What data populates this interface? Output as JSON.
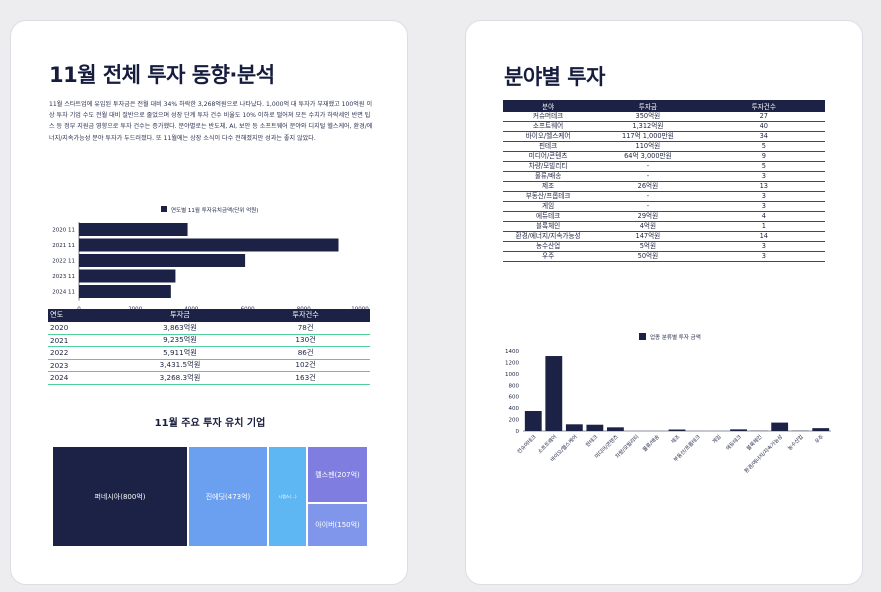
{
  "left": {
    "title": "11월 전체 투자 동향·분석",
    "paragraph": "11월 스타트업에 유입된 투자금은 전월 대비 34% 하락한 3,268억원으로 나타났다. 1,000억 대 투자가 부재했고 100억원 이상 투자 기업 수도 전월 대비 절반으로 줄었으며 성장 단계 투자 건수 비율도 10% 이하로 떨어져 모든 수치가 하락세인 반면 팁스 등 정부 지원금 영향으로 투자 건수는 증가했다. 분야별로는 반도체, AI, 보안 등 소프트웨어 분야와 디지털 헬스케어, 환경/에너지/지속가능성 분야 투자가 두드러졌다. 또 11월에는 상장 소식이 다수 전해졌지만 성과는 좋지 않았다.",
    "chart_data": {
      "type": "bar",
      "orientation": "horizontal",
      "legend": "연도별 11월 투자유치금액(단위 억원)",
      "categories": [
        "2020 11",
        "2021 11",
        "2022 11",
        "2023 11",
        "2024 11"
      ],
      "values": [
        3863,
        9235,
        5911,
        3431.5,
        3268.3
      ],
      "xlim": [
        0,
        10000
      ],
      "xticks": [
        "0",
        "2000",
        "4000",
        "6000",
        "8000",
        "10000"
      ],
      "color": "#1b2245"
    },
    "table": {
      "headers": [
        "연도",
        "투자금",
        "투자건수"
      ],
      "rows": [
        [
          "2020",
          "3,863억원",
          "78건"
        ],
        [
          "2021",
          "9,235억원",
          "130건"
        ],
        [
          "2022",
          "5,911억원",
          "86건"
        ],
        [
          "2023",
          "3,431.5억원",
          "102건"
        ],
        [
          "2024",
          "3,268.3억원",
          "163건"
        ]
      ]
    },
    "treemap_title": "11월 주요 투자 유치 기업",
    "treemap": [
      {
        "label": "퍼네시아(800억)",
        "value": 800,
        "color": "#1b2245"
      },
      {
        "label": "진에딧(473억)",
        "value": 473,
        "color": "#6b9ff0"
      },
      {
        "label": "시랩스(…)",
        "value": 0,
        "color": "#5eb7f2"
      },
      {
        "label": "멜스젠(207억)",
        "value": 207,
        "color": "#7f7de0"
      },
      {
        "label": "아이버(150억)",
        "value": 150,
        "color": "#7f96ea"
      }
    ]
  },
  "right": {
    "title": "분야별 투자",
    "table": {
      "headers": [
        "분야",
        "투자금",
        "투자건수"
      ],
      "rows": [
        [
          "커슈머테크",
          "350억원",
          "27"
        ],
        [
          "소프트웨어",
          "1,312억원",
          "40"
        ],
        [
          "바이오/헬스케어",
          "117억 1,000만원",
          "34"
        ],
        [
          "핀테크",
          "110억원",
          "5"
        ],
        [
          "미디어/콘텐츠",
          "64억 3,000만원",
          "9"
        ],
        [
          "차량/모빌리티",
          "-",
          "5"
        ],
        [
          "물류/배송",
          "-",
          "3"
        ],
        [
          "제조",
          "26억원",
          "13"
        ],
        [
          "부동산/프롭테크",
          "-",
          "3"
        ],
        [
          "게임",
          "-",
          "3"
        ],
        [
          "에듀테크",
          "29억원",
          "4"
        ],
        [
          "블록체인",
          "4억원",
          "1"
        ],
        [
          "환경/에너지/지속가능성",
          "147억원",
          "14"
        ],
        [
          "농수산업",
          "5억원",
          "3"
        ],
        [
          "우주",
          "50억원",
          "3"
        ]
      ]
    },
    "chart_data": {
      "type": "bar",
      "legend": "업종 분류별 투자 금액",
      "categories": [
        "컨슈머테크",
        "소프트웨어",
        "바이오/헬스케어",
        "핀테크",
        "미디어/콘텐츠",
        "차량/모빌리티",
        "물류/배송",
        "제조",
        "부동산/프롭테크",
        "게임",
        "에듀테크",
        "블록체인",
        "환경/에너지/지속가능성",
        "농수산업",
        "우주"
      ],
      "values": [
        350,
        1312,
        117.1,
        110,
        64.3,
        0,
        0,
        26,
        0,
        0,
        29,
        4,
        147,
        5,
        50
      ],
      "ylim": [
        0,
        1400
      ],
      "yticks": [
        "0",
        "200",
        "400",
        "600",
        "800",
        "1000",
        "1200",
        "1400"
      ],
      "color": "#1b2245"
    }
  }
}
